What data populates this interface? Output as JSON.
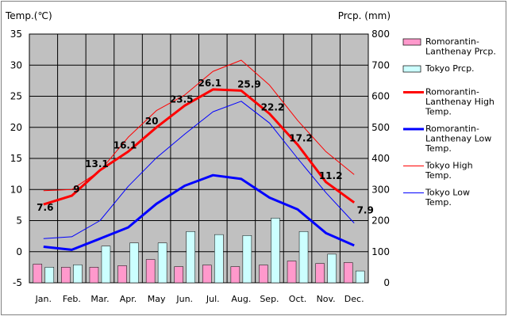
{
  "chart_data": {
    "type": "bar",
    "left_axis_title": "Temp.(℃)",
    "right_axis_title": "Prcp. (mm)",
    "categories": [
      "Jan.",
      "Feb.",
      "Mar.",
      "Apr.",
      "May",
      "Jun.",
      "Jul.",
      "Aug.",
      "Sep.",
      "Oct.",
      "Nov.",
      "Dec."
    ],
    "y_left": {
      "min": -5,
      "max": 35,
      "ticks": [
        -5,
        0,
        5,
        10,
        15,
        20,
        25,
        30,
        35
      ]
    },
    "y_right": {
      "min": 0,
      "max": 800,
      "ticks": [
        0,
        100,
        200,
        300,
        400,
        500,
        600,
        700,
        800
      ]
    },
    "grid": true,
    "legend_position": "right",
    "bar_series": [
      {
        "name": "Romorantin-Lanthenay Prcp.",
        "color": "#ff99cc",
        "axis": "right",
        "values": [
          60,
          50,
          50,
          55,
          75,
          52,
          57,
          52,
          57,
          70,
          62,
          65
        ]
      },
      {
        "name": "Tokyo Prcp.",
        "color": "#ccffff",
        "axis": "right",
        "values": [
          50,
          58,
          118,
          128,
          128,
          165,
          155,
          152,
          208,
          165,
          92,
          38
        ]
      }
    ],
    "line_series": [
      {
        "name": "Romorantin-Lanthenay High Temp.",
        "color": "#ff0000",
        "width": 3,
        "axis": "left",
        "values": [
          7.6,
          9,
          13.1,
          16.1,
          20,
          23.5,
          26.1,
          25.9,
          22.2,
          17.2,
          11.2,
          7.9
        ],
        "labels": [
          "7.6",
          "9",
          "13.1",
          "16.1",
          "20",
          "23.5",
          "26.1",
          "25.9",
          "22.2",
          "17.2",
          "11.2",
          "7.9"
        ]
      },
      {
        "name": "Romorantin-Lanthenay Low Temp.",
        "color": "#0000ff",
        "width": 3,
        "axis": "left",
        "values": [
          0.8,
          0.3,
          2.1,
          3.9,
          7.7,
          10.6,
          12.3,
          11.7,
          8.7,
          6.8,
          3,
          1
        ]
      },
      {
        "name": "Tokyo High Temp.",
        "color": "#ff0000",
        "width": 1,
        "axis": "left",
        "values": [
          9.8,
          10,
          13,
          18.4,
          22.7,
          25.2,
          29,
          30.8,
          26.8,
          21.1,
          16.1,
          12.4
        ]
      },
      {
        "name": "Tokyo Low Temp.",
        "color": "#0000ff",
        "width": 1,
        "axis": "left",
        "values": [
          2.1,
          2.4,
          5,
          10.5,
          15.1,
          18.9,
          22.5,
          24.2,
          20.7,
          15,
          9.5,
          4.6
        ]
      }
    ],
    "legend": [
      {
        "kind": "bar",
        "color": "#ff99cc",
        "lines": [
          "Romorantin-",
          "Lanthenay Prcp."
        ]
      },
      {
        "kind": "bar",
        "color": "#ccffff",
        "lines": [
          "Tokyo Prcp."
        ]
      },
      {
        "kind": "line",
        "color": "#ff0000",
        "width": 3,
        "lines": [
          "Romorantin-",
          "Lanthenay High",
          "Temp."
        ]
      },
      {
        "kind": "line",
        "color": "#0000ff",
        "width": 3,
        "lines": [
          "Romorantin-",
          "Lanthenay Low",
          "Temp."
        ]
      },
      {
        "kind": "line",
        "color": "#ff0000",
        "width": 1,
        "lines": [
          "Tokyo High",
          "Temp."
        ]
      },
      {
        "kind": "line",
        "color": "#0000ff",
        "width": 1,
        "lines": [
          "Tokyo Low",
          "Temp."
        ]
      }
    ],
    "colors": {
      "plot_background": "#c0c0c0",
      "gridline": "#000000"
    }
  }
}
